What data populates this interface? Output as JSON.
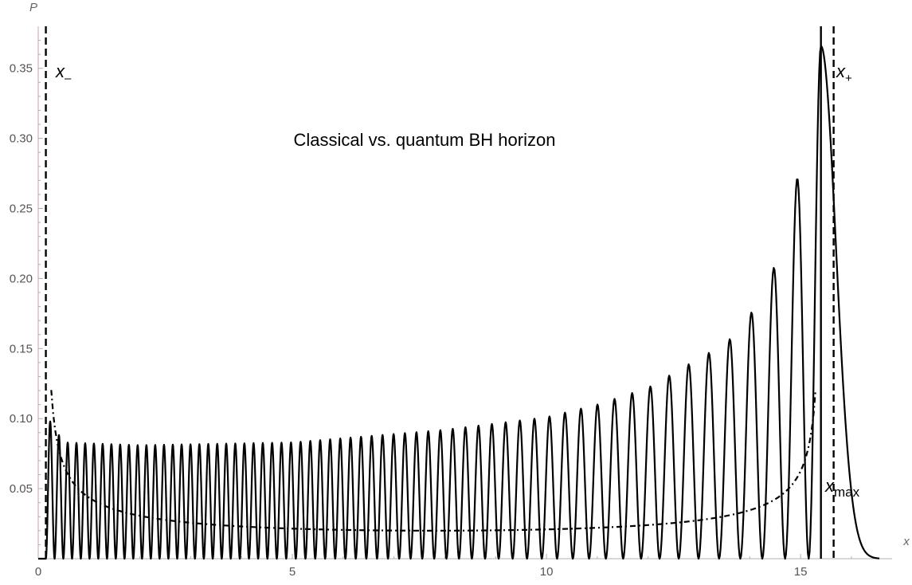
{
  "chart_data": {
    "type": "line",
    "title": "Classical vs. quantum BH horizon",
    "xlabel": "x",
    "ylabel": "P",
    "xlim": [
      0,
      16.8
    ],
    "ylim": [
      0,
      0.38
    ],
    "x_ticks": [
      {
        "value": 0,
        "label": "0"
      },
      {
        "value": 5,
        "label": "5"
      },
      {
        "value": 10,
        "label": "10"
      },
      {
        "value": 15,
        "label": "15"
      }
    ],
    "y_ticks": [
      {
        "value": 0.05,
        "label": "0.05"
      },
      {
        "value": 0.1,
        "label": "0.10"
      },
      {
        "value": 0.15,
        "label": "0.15"
      },
      {
        "value": 0.2,
        "label": "0.20"
      },
      {
        "value": 0.25,
        "label": "0.25"
      },
      {
        "value": 0.3,
        "label": "0.30"
      },
      {
        "value": 0.35,
        "label": "0.35"
      }
    ],
    "quantum_probability": {
      "style": "solid",
      "oscillations": 64,
      "x_start": 0.15,
      "x_end": 16.55,
      "peak_envelope": [
        [
          0.2,
          0.1
        ],
        [
          0.5,
          0.083
        ],
        [
          2,
          0.081
        ],
        [
          5,
          0.083
        ],
        [
          8,
          0.092
        ],
        [
          10,
          0.101
        ],
        [
          11,
          0.11
        ],
        [
          12,
          0.122
        ],
        [
          13,
          0.143
        ],
        [
          13.5,
          0.153
        ],
        [
          13.9,
          0.167
        ],
        [
          14.2,
          0.187
        ],
        [
          14.7,
          0.225
        ],
        [
          15.4,
          0.366
        ]
      ],
      "final_peak": {
        "x": 15.4,
        "y": 0.366
      }
    },
    "classical_probability": {
      "style": "dash-dot",
      "x_min": 0.15,
      "x_max": 15.4,
      "minimum": 0.02
    },
    "vertical_lines": [
      {
        "label": "x-",
        "x": 0.15,
        "style": "dashed"
      },
      {
        "label": "x+",
        "x": 15.65,
        "style": "dashed"
      },
      {
        "label": "xmax",
        "x": 15.4,
        "style": "solid"
      }
    ],
    "annotations": {
      "x_minus": {
        "base": "x",
        "sub": "–"
      },
      "x_plus": {
        "base": "x",
        "sub": "+"
      },
      "x_max": {
        "base": "x",
        "sub": "max"
      }
    },
    "grid": false,
    "legend": "none"
  }
}
